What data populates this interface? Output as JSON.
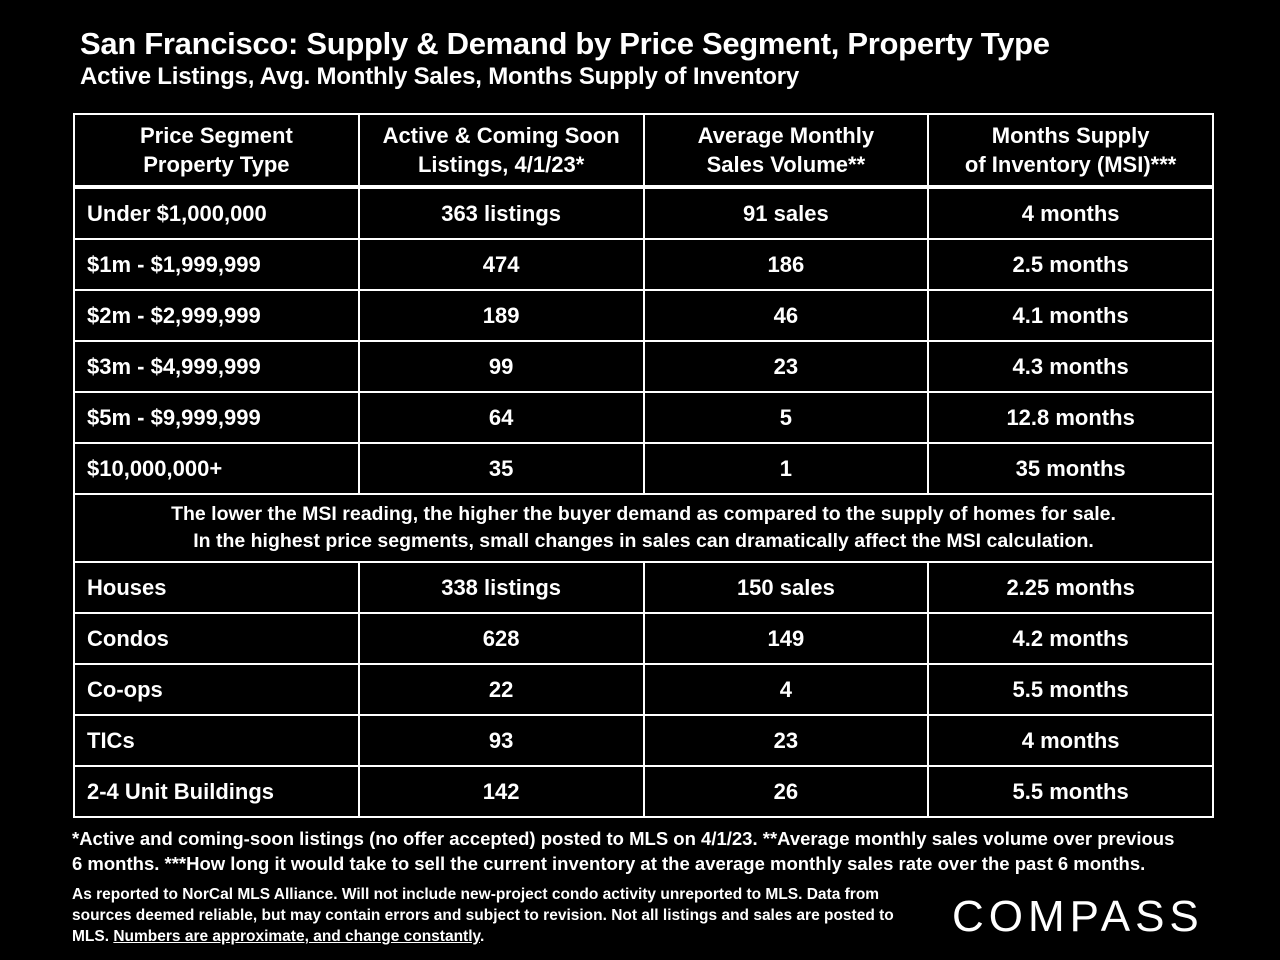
{
  "title": "San Francisco: Supply & Demand by Price Segment, Property Type",
  "subtitle": "Active Listings, Avg. Monthly Sales, Months Supply of Inventory",
  "headers": [
    {
      "line1": "Price Segment",
      "line2": "Property Type"
    },
    {
      "line1": "Active & Coming Soon",
      "line2": "Listings, 4/1/23*"
    },
    {
      "line1": "Average Monthly",
      "line2": "Sales Volume**"
    },
    {
      "line1": "Months Supply",
      "line2": "of Inventory (MSI)***"
    }
  ],
  "price_rows": [
    {
      "segment": "Under $1,000,000",
      "listings": "363 listings",
      "sales": "91 sales",
      "msi": "4 months"
    },
    {
      "segment": "$1m - $1,999,999",
      "listings": "474",
      "sales": "186",
      "msi": "2.5 months"
    },
    {
      "segment": "$2m - $2,999,999",
      "listings": "189",
      "sales": "46",
      "msi": "4.1 months"
    },
    {
      "segment": "$3m - $4,999,999",
      "listings": "99",
      "sales": "23",
      "msi": "4.3 months"
    },
    {
      "segment": "$5m - $9,999,999",
      "listings": "64",
      "sales": "5",
      "msi": "12.8 months"
    },
    {
      "segment": "$10,000,000+",
      "listings": "35",
      "sales": "1",
      "msi": "35 months"
    }
  ],
  "note": {
    "line1": "The lower the MSI reading, the higher the buyer demand as compared to the supply of homes for sale.",
    "line2": "In the highest price segments, small changes in sales can dramatically affect the MSI calculation."
  },
  "type_rows": [
    {
      "segment": "Houses",
      "listings": "338 listings",
      "sales": "150 sales",
      "msi": "2.25 months"
    },
    {
      "segment": "Condos",
      "listings": "628",
      "sales": "149",
      "msi": "4.2 months"
    },
    {
      "segment": "Co-ops",
      "listings": "22",
      "sales": "4",
      "msi": "5.5 months"
    },
    {
      "segment": "TICs",
      "listings": "93",
      "sales": "23",
      "msi": "4 months"
    },
    {
      "segment": "2-4 Unit Buildings",
      "listings": "142",
      "sales": "26",
      "msi": "5.5 months"
    }
  ],
  "footnote": {
    "line1": "*Active and coming-soon listings (no offer accepted) posted to MLS on 4/1/23. **Average monthly sales volume over previous",
    "line2": "6 months. ***How long it would take to sell the current inventory at the average monthly sales rate over the past 6 months."
  },
  "disclaimer": {
    "line1": "As reported to NorCal MLS Alliance.  Will not include new-project condo activity unreported to MLS. Data from",
    "line2": "sources deemed reliable, but may contain errors and subject to revision.  Not all listings and sales are posted to",
    "line3_prefix": "MLS. ",
    "line3_underlined": "Numbers are approximate, and change constantly",
    "line3_suffix": "."
  },
  "logo": "COMPASS"
}
